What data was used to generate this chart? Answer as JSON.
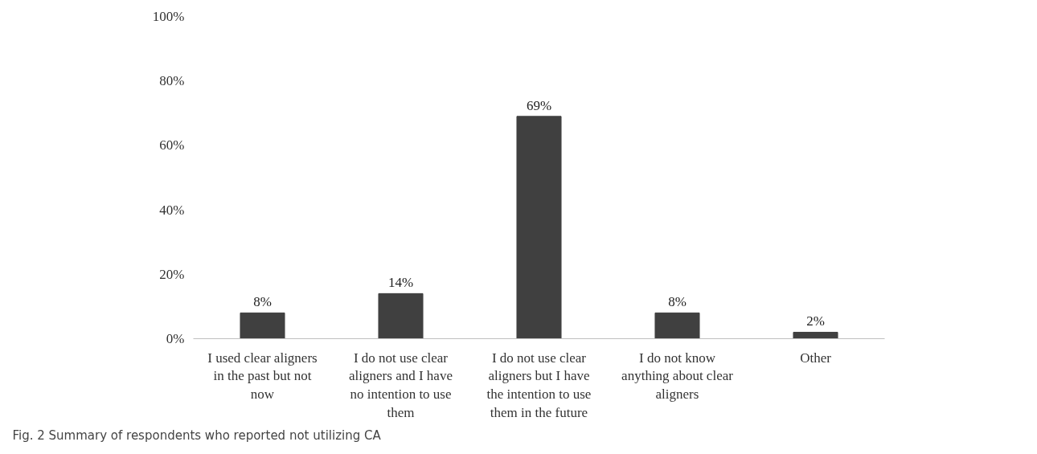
{
  "chart_data": {
    "type": "bar",
    "categories": [
      "I used clear aligners in the past but not now",
      "I do not use clear aligners and I have no intention to use them",
      "I do not use clear aligners but I have the intention to use them in the future",
      "I do not know anything about clear aligners",
      "Other"
    ],
    "values": [
      8,
      14,
      69,
      8,
      2
    ],
    "value_labels": [
      "8%",
      "14%",
      "69%",
      "8%",
      "2%"
    ],
    "color": "#404040",
    "ylim": [
      0,
      100
    ],
    "yticks": [
      {
        "value": 0,
        "label": "0%"
      },
      {
        "value": 20,
        "label": "20%"
      },
      {
        "value": 40,
        "label": "40%"
      },
      {
        "value": 60,
        "label": "60%"
      },
      {
        "value": 80,
        "label": "80%"
      },
      {
        "value": 100,
        "label": "100%"
      }
    ],
    "grid": false,
    "annotations": [
      "Fig. 2 Summary of respondents who reported not utilizing CA"
    ]
  }
}
